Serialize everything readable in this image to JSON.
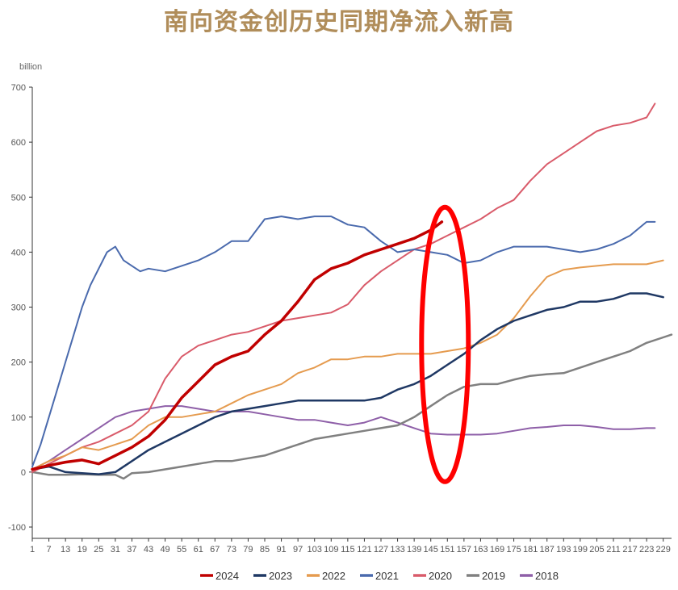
{
  "chart_data": {
    "type": "line",
    "title": "南向资金创历史同期净流入新高",
    "ylabel": "billion",
    "ylim": [
      -100,
      700
    ],
    "xlim": [
      1,
      232
    ],
    "y_ticks": [
      "-100",
      "0",
      "100",
      "200",
      "300",
      "400",
      "500",
      "600",
      "700"
    ],
    "x_ticks": [
      "1",
      "7",
      "13",
      "19",
      "25",
      "31",
      "37",
      "43",
      "49",
      "55",
      "61",
      "67",
      "73",
      "79",
      "85",
      "91",
      "97",
      "103",
      "109",
      "115",
      "121",
      "127",
      "133",
      "139",
      "145",
      "151",
      "157",
      "163",
      "169",
      "175",
      "181",
      "187",
      "193",
      "199",
      "205",
      "211",
      "217",
      "223",
      "229"
    ],
    "highlight_ellipse": {
      "x_center": 151,
      "y_center": 235,
      "color": "#ff0000"
    },
    "legend_position": "bottom",
    "series": [
      {
        "name": "2024",
        "color": "#c00000",
        "width": 3.5,
        "points": [
          [
            1,
            5
          ],
          [
            7,
            12
          ],
          [
            13,
            18
          ],
          [
            19,
            22
          ],
          [
            25,
            15
          ],
          [
            31,
            30
          ],
          [
            37,
            45
          ],
          [
            43,
            65
          ],
          [
            49,
            95
          ],
          [
            55,
            135
          ],
          [
            61,
            165
          ],
          [
            67,
            195
          ],
          [
            73,
            210
          ],
          [
            79,
            220
          ],
          [
            85,
            250
          ],
          [
            91,
            275
          ],
          [
            97,
            310
          ],
          [
            103,
            350
          ],
          [
            109,
            370
          ],
          [
            115,
            380
          ],
          [
            121,
            395
          ],
          [
            127,
            405
          ],
          [
            133,
            415
          ],
          [
            139,
            425
          ],
          [
            145,
            440
          ],
          [
            149,
            455
          ]
        ]
      },
      {
        "name": "2023",
        "color": "#1f3864",
        "width": 2.5,
        "points": [
          [
            1,
            5
          ],
          [
            7,
            10
          ],
          [
            13,
            0
          ],
          [
            19,
            -2
          ],
          [
            25,
            -4
          ],
          [
            31,
            0
          ],
          [
            37,
            20
          ],
          [
            43,
            40
          ],
          [
            49,
            55
          ],
          [
            55,
            70
          ],
          [
            61,
            85
          ],
          [
            67,
            100
          ],
          [
            73,
            110
          ],
          [
            79,
            115
          ],
          [
            85,
            120
          ],
          [
            91,
            125
          ],
          [
            97,
            130
          ],
          [
            103,
            130
          ],
          [
            109,
            130
          ],
          [
            115,
            130
          ],
          [
            121,
            130
          ],
          [
            127,
            135
          ],
          [
            133,
            150
          ],
          [
            139,
            160
          ],
          [
            145,
            175
          ],
          [
            151,
            195
          ],
          [
            157,
            215
          ],
          [
            163,
            240
          ],
          [
            169,
            260
          ],
          [
            175,
            275
          ],
          [
            181,
            285
          ],
          [
            187,
            295
          ],
          [
            193,
            300
          ],
          [
            199,
            310
          ],
          [
            205,
            310
          ],
          [
            211,
            315
          ],
          [
            217,
            325
          ],
          [
            223,
            325
          ],
          [
            229,
            318
          ]
        ]
      },
      {
        "name": "2022",
        "color": "#e59b4f",
        "width": 2,
        "points": [
          [
            1,
            5
          ],
          [
            7,
            20
          ],
          [
            13,
            30
          ],
          [
            19,
            45
          ],
          [
            25,
            40
          ],
          [
            31,
            50
          ],
          [
            37,
            60
          ],
          [
            43,
            85
          ],
          [
            49,
            100
          ],
          [
            55,
            100
          ],
          [
            61,
            105
          ],
          [
            67,
            110
          ],
          [
            73,
            125
          ],
          [
            79,
            140
          ],
          [
            85,
            150
          ],
          [
            91,
            160
          ],
          [
            97,
            180
          ],
          [
            103,
            190
          ],
          [
            109,
            205
          ],
          [
            115,
            205
          ],
          [
            121,
            210
          ],
          [
            127,
            210
          ],
          [
            133,
            215
          ],
          [
            139,
            215
          ],
          [
            145,
            215
          ],
          [
            151,
            220
          ],
          [
            157,
            225
          ],
          [
            163,
            235
          ],
          [
            169,
            250
          ],
          [
            175,
            280
          ],
          [
            181,
            320
          ],
          [
            187,
            355
          ],
          [
            193,
            368
          ],
          [
            199,
            372
          ],
          [
            205,
            375
          ],
          [
            211,
            378
          ],
          [
            217,
            378
          ],
          [
            223,
            378
          ],
          [
            229,
            385
          ]
        ]
      },
      {
        "name": "2021",
        "color": "#4a6aad",
        "width": 2,
        "points": [
          [
            1,
            10
          ],
          [
            4,
            50
          ],
          [
            7,
            100
          ],
          [
            10,
            150
          ],
          [
            13,
            200
          ],
          [
            16,
            250
          ],
          [
            19,
            300
          ],
          [
            22,
            340
          ],
          [
            25,
            370
          ],
          [
            28,
            400
          ],
          [
            31,
            410
          ],
          [
            34,
            385
          ],
          [
            37,
            375
          ],
          [
            40,
            365
          ],
          [
            43,
            370
          ],
          [
            49,
            365
          ],
          [
            55,
            375
          ],
          [
            61,
            385
          ],
          [
            67,
            400
          ],
          [
            73,
            420
          ],
          [
            79,
            420
          ],
          [
            85,
            460
          ],
          [
            91,
            465
          ],
          [
            97,
            460
          ],
          [
            103,
            465
          ],
          [
            109,
            465
          ],
          [
            115,
            450
          ],
          [
            121,
            445
          ],
          [
            127,
            420
          ],
          [
            133,
            400
          ],
          [
            139,
            405
          ],
          [
            145,
            400
          ],
          [
            151,
            395
          ],
          [
            157,
            380
          ],
          [
            163,
            385
          ],
          [
            169,
            400
          ],
          [
            175,
            410
          ],
          [
            181,
            410
          ],
          [
            187,
            410
          ],
          [
            193,
            405
          ],
          [
            199,
            400
          ],
          [
            205,
            405
          ],
          [
            211,
            415
          ],
          [
            217,
            430
          ],
          [
            223,
            455
          ],
          [
            226,
            455
          ]
        ]
      },
      {
        "name": "2020",
        "color": "#d95b6a",
        "width": 2,
        "points": [
          [
            1,
            0
          ],
          [
            7,
            15
          ],
          [
            13,
            30
          ],
          [
            19,
            45
          ],
          [
            25,
            55
          ],
          [
            31,
            70
          ],
          [
            37,
            85
          ],
          [
            43,
            110
          ],
          [
            49,
            170
          ],
          [
            55,
            210
          ],
          [
            61,
            230
          ],
          [
            67,
            240
          ],
          [
            73,
            250
          ],
          [
            79,
            255
          ],
          [
            85,
            265
          ],
          [
            91,
            275
          ],
          [
            97,
            280
          ],
          [
            103,
            285
          ],
          [
            109,
            290
          ],
          [
            115,
            305
          ],
          [
            121,
            340
          ],
          [
            127,
            365
          ],
          [
            133,
            385
          ],
          [
            139,
            405
          ],
          [
            145,
            415
          ],
          [
            151,
            430
          ],
          [
            157,
            445
          ],
          [
            163,
            460
          ],
          [
            169,
            480
          ],
          [
            175,
            495
          ],
          [
            181,
            530
          ],
          [
            187,
            560
          ],
          [
            193,
            580
          ],
          [
            199,
            600
          ],
          [
            205,
            620
          ],
          [
            211,
            630
          ],
          [
            217,
            635
          ],
          [
            223,
            645
          ],
          [
            226,
            670
          ]
        ]
      },
      {
        "name": "2019",
        "color": "#808080",
        "width": 2.5,
        "points": [
          [
            1,
            0
          ],
          [
            7,
            -5
          ],
          [
            13,
            -5
          ],
          [
            19,
            -4
          ],
          [
            25,
            -5
          ],
          [
            31,
            -5
          ],
          [
            34,
            -12
          ],
          [
            37,
            -2
          ],
          [
            43,
            0
          ],
          [
            49,
            5
          ],
          [
            55,
            10
          ],
          [
            61,
            15
          ],
          [
            67,
            20
          ],
          [
            73,
            20
          ],
          [
            79,
            25
          ],
          [
            85,
            30
          ],
          [
            91,
            40
          ],
          [
            97,
            50
          ],
          [
            103,
            60
          ],
          [
            109,
            65
          ],
          [
            115,
            70
          ],
          [
            121,
            75
          ],
          [
            127,
            80
          ],
          [
            133,
            85
          ],
          [
            139,
            100
          ],
          [
            145,
            120
          ],
          [
            151,
            140
          ],
          [
            157,
            155
          ],
          [
            163,
            160
          ],
          [
            169,
            160
          ],
          [
            175,
            168
          ],
          [
            181,
            175
          ],
          [
            187,
            178
          ],
          [
            193,
            180
          ],
          [
            199,
            190
          ],
          [
            205,
            200
          ],
          [
            211,
            210
          ],
          [
            217,
            220
          ],
          [
            223,
            235
          ],
          [
            229,
            245
          ],
          [
            232,
            250
          ]
        ]
      },
      {
        "name": "2018",
        "color": "#8e5fa8",
        "width": 2,
        "points": [
          [
            1,
            5
          ],
          [
            7,
            20
          ],
          [
            13,
            40
          ],
          [
            19,
            60
          ],
          [
            25,
            80
          ],
          [
            31,
            100
          ],
          [
            37,
            110
          ],
          [
            43,
            115
          ],
          [
            49,
            120
          ],
          [
            55,
            120
          ],
          [
            61,
            115
          ],
          [
            67,
            110
          ],
          [
            73,
            110
          ],
          [
            79,
            110
          ],
          [
            85,
            105
          ],
          [
            91,
            100
          ],
          [
            97,
            95
          ],
          [
            103,
            95
          ],
          [
            109,
            90
          ],
          [
            115,
            85
          ],
          [
            121,
            90
          ],
          [
            127,
            100
          ],
          [
            133,
            90
          ],
          [
            139,
            80
          ],
          [
            145,
            70
          ],
          [
            151,
            68
          ],
          [
            157,
            68
          ],
          [
            163,
            68
          ],
          [
            169,
            70
          ],
          [
            175,
            75
          ],
          [
            181,
            80
          ],
          [
            187,
            82
          ],
          [
            193,
            85
          ],
          [
            199,
            85
          ],
          [
            205,
            82
          ],
          [
            211,
            78
          ],
          [
            217,
            78
          ],
          [
            223,
            80
          ],
          [
            226,
            80
          ]
        ]
      }
    ]
  }
}
